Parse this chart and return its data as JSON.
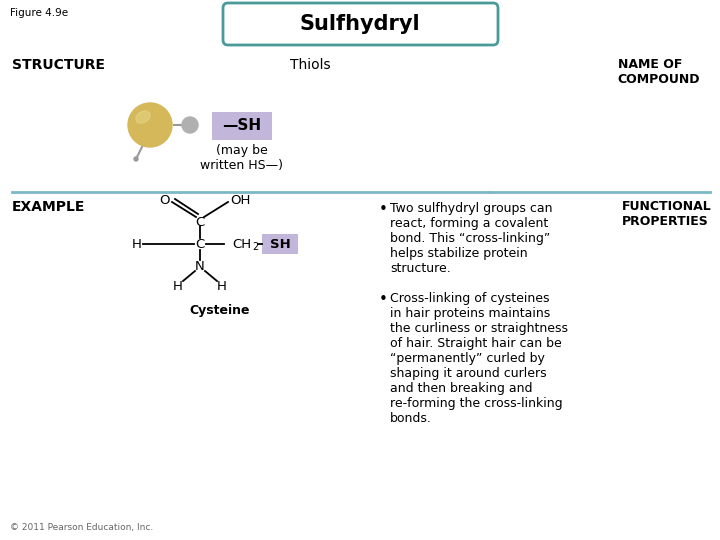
{
  "figure_label": "Figure 4.9e",
  "title": "Sulfhydryl",
  "title_box_color": "#4a9a9a",
  "title_bg": "#ffffff",
  "structure_label": "STRUCTURE",
  "thiols_label": "Thiols",
  "name_of_compound_label": "NAME OF\nCOMPOUND",
  "sh_box_color": "#9b8ec4",
  "sh_text": "—SH",
  "sh_text2": "SH",
  "may_be_written": "(may be\nwritten HS—)",
  "example_label": "EXAMPLE",
  "cysteine_label": "Cysteine",
  "functional_properties_label": "FUNCTIONAL\nPROPERTIES",
  "divider_color": "#7ab8c8",
  "bullet1": "Two sulfhydryl groups can\nreact, forming a covalent\nbond. This “cross-linking”\nhelps stabilize protein\nstructure.",
  "bullet2": "Cross-linking of cysteines\nin hair proteins maintains\nthe curliness or straightness\nof hair. Straight hair can be\n“permanently” curled by\nshaping it around curlers\nand then breaking and\nre-forming the cross-linking\nbonds.",
  "copyright": "© 2011 Pearson Education, Inc.",
  "bg_color": "#ffffff",
  "text_color": "#000000",
  "ball_color_large": "#d4b85a",
  "ball_color_small": "#b0b0b0",
  "stick_color": "#999999"
}
